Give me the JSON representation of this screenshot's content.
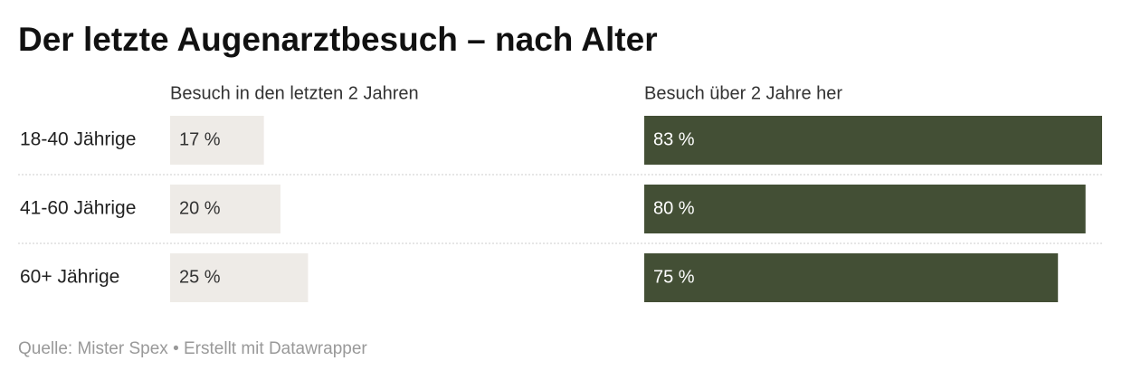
{
  "chart_data": {
    "type": "bar",
    "title": "Der letzte Augenarztbesuch – nach Alter",
    "categories": [
      "18-40 Jährige",
      "41-60 Jährige",
      "60+ Jährige"
    ],
    "series": [
      {
        "name": "Besuch in den letzten 2 Jahren",
        "color": "#eeebe7",
        "label_color": "#333333",
        "values": [
          17,
          20,
          25
        ],
        "value_labels": [
          "17 %",
          "20 %",
          "25 %"
        ]
      },
      {
        "name": "Besuch über 2 Jahre her",
        "color": "#434f35",
        "label_color": "#ffffff",
        "values": [
          83,
          80,
          75
        ],
        "value_labels": [
          "83 %",
          "80 %",
          "75 %"
        ]
      }
    ],
    "source": "Quelle: Mister Spex • Erstellt mit Datawrapper"
  }
}
